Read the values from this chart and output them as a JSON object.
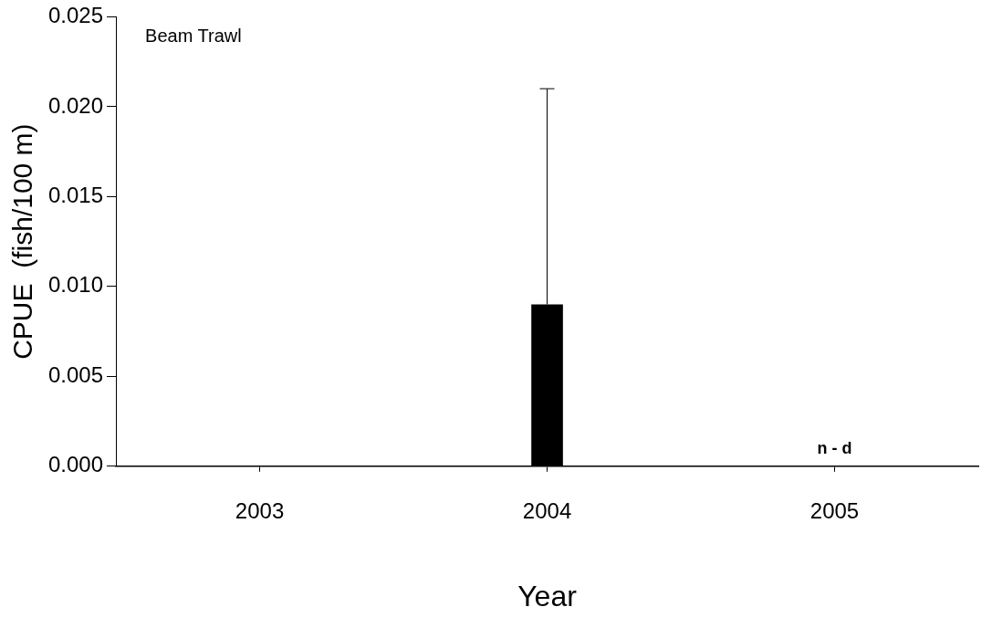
{
  "chart_data": {
    "type": "bar",
    "xlabel": "Year",
    "ylabel": "CPUE  (fish/100 m)",
    "categories": [
      "2003",
      "2004",
      "2005"
    ],
    "values": [
      0,
      0.009,
      null
    ],
    "errors": [
      null,
      [
        0.009,
        0.021
      ],
      null
    ],
    "color": "#000000",
    "ylim": [
      0,
      0.025
    ],
    "yticks": [
      {
        "value": 0,
        "label": "0.000"
      },
      {
        "value": 0.005,
        "label": "0.005"
      },
      {
        "value": 0.01,
        "label": "0.010"
      },
      {
        "value": 0.015,
        "label": "0.015"
      },
      {
        "value": 0.02,
        "label": "0.020"
      },
      {
        "value": 0.025,
        "label": "0.025"
      }
    ],
    "annotations": [
      "Beam Trawl",
      "n - d"
    ],
    "grid": false,
    "legend": false
  }
}
